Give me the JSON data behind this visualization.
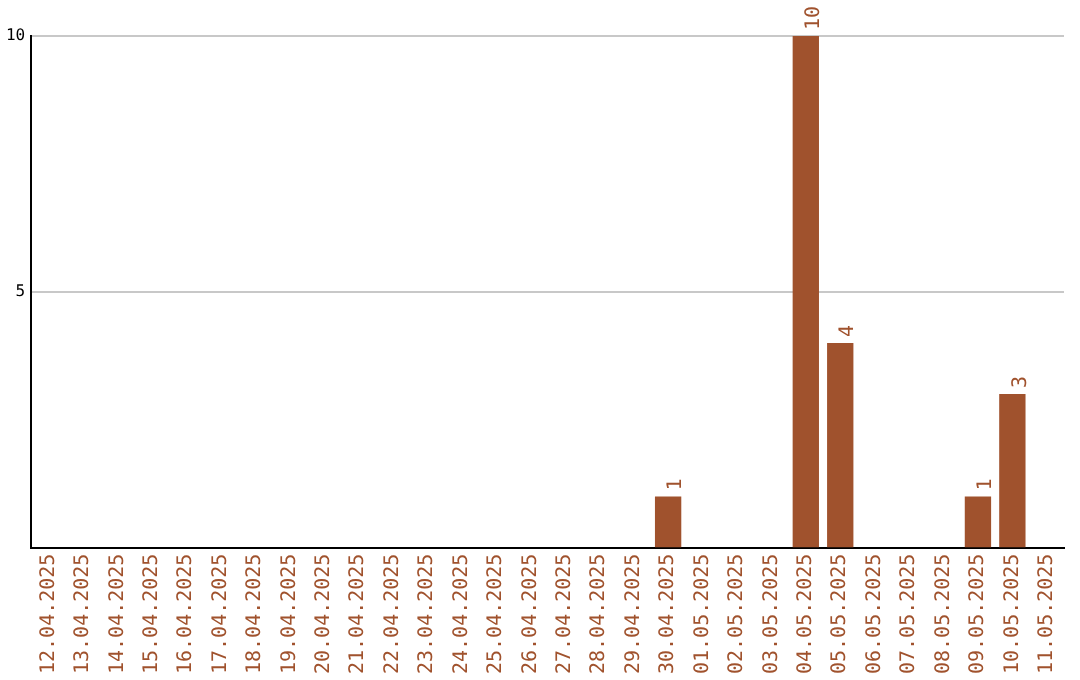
{
  "chart_data": {
    "type": "bar",
    "categories": [
      "12.04.2025",
      "13.04.2025",
      "14.04.2025",
      "15.04.2025",
      "16.04.2025",
      "17.04.2025",
      "18.04.2025",
      "19.04.2025",
      "20.04.2025",
      "21.04.2025",
      "22.04.2025",
      "23.04.2025",
      "24.04.2025",
      "25.04.2025",
      "26.04.2025",
      "27.04.2025",
      "28.04.2025",
      "29.04.2025",
      "30.04.2025",
      "01.05.2025",
      "02.05.2025",
      "03.05.2025",
      "04.05.2025",
      "05.05.2025",
      "06.05.2025",
      "07.05.2025",
      "08.05.2025",
      "09.05.2025",
      "10.05.2025",
      "11.05.2025"
    ],
    "values": [
      null,
      null,
      null,
      null,
      null,
      null,
      null,
      null,
      null,
      null,
      null,
      null,
      null,
      null,
      null,
      null,
      null,
      null,
      1,
      null,
      null,
      null,
      10,
      4,
      null,
      null,
      null,
      1,
      3,
      null
    ],
    "color": "#a0522d",
    "ylim": [
      0,
      10
    ],
    "yticks": [
      5,
      10
    ],
    "grid": "y",
    "data_labels": true
  }
}
